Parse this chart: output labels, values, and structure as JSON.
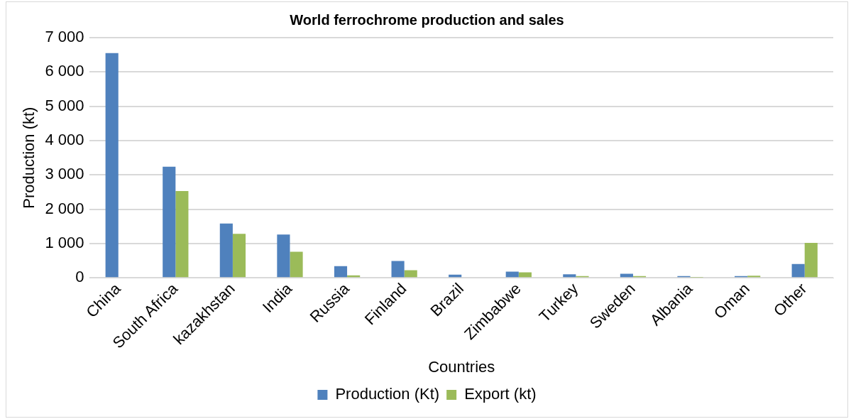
{
  "chart_data": {
    "type": "bar",
    "title": "World ferrochrome production and sales",
    "xlabel": "Countries",
    "ylabel": "Production (kt)",
    "categories": [
      "China",
      "South Africa",
      "kazakhstan",
      "India",
      "Russia",
      "Finland",
      "Brazil",
      "Zimbabwe",
      "Turkey",
      "Sweden",
      "Albania",
      "Oman",
      "Other"
    ],
    "series": [
      {
        "name": "Production (Kt)",
        "color": "#4f81bd",
        "values": [
          6550,
          3240,
          1580,
          1260,
          340,
          490,
          90,
          180,
          100,
          120,
          50,
          50,
          400
        ]
      },
      {
        "name": "Export (kt)",
        "color": "#9bbb59",
        "values": [
          null,
          2530,
          1280,
          760,
          70,
          220,
          0,
          160,
          50,
          50,
          10,
          60,
          1020
        ]
      }
    ],
    "ylim": [
      0,
      7000
    ],
    "yticks": [
      {
        "value": 0,
        "label": "0"
      },
      {
        "value": 1000,
        "label": "1 000"
      },
      {
        "value": 2000,
        "label": "2 000"
      },
      {
        "value": 3000,
        "label": "3 000"
      },
      {
        "value": 4000,
        "label": "4 000"
      },
      {
        "value": 5000,
        "label": "5 000"
      },
      {
        "value": 6000,
        "label": "6 000"
      },
      {
        "value": 7000,
        "label": "7 000"
      }
    ],
    "grid": "y",
    "legend": "bottom"
  }
}
